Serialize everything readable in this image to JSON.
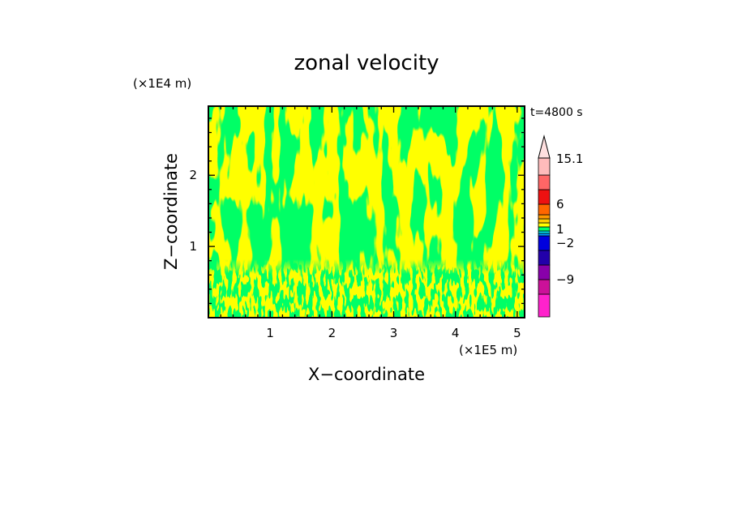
{
  "chart_data": {
    "type": "heatmap",
    "title": "zonal velocity",
    "xlabel": "X−coordinate",
    "ylabel": "Z−coordinate",
    "x_unit": "(×1E5 m)",
    "y_unit": "(×1E4 m)",
    "time_label": "t=4800 s",
    "xlim": [
      0,
      5.12
    ],
    "ylim": [
      0,
      2.97
    ],
    "x_ticks": [
      "1",
      "2",
      "3",
      "4",
      "5"
    ],
    "x_tick_values": [
      1,
      2,
      3,
      4,
      5
    ],
    "y_ticks": [
      "1",
      "2"
    ],
    "y_tick_values": [
      1,
      2
    ],
    "field_colors": {
      "positive": "#ffff00",
      "negative": "#00ff66"
    },
    "colorbar": {
      "labels": [
        "15.1",
        "6",
        "1",
        "−2",
        "−9"
      ],
      "label_values": [
        15.1,
        6,
        1,
        -2,
        -9
      ],
      "segments": [
        {
          "color": "#ff22cc"
        },
        {
          "color": "#cc1199"
        },
        {
          "color": "#8800aa"
        },
        {
          "color": "#2200aa"
        },
        {
          "color": "#0000dd"
        },
        {
          "color": "#0099ff"
        },
        {
          "color": "#00ddee"
        },
        {
          "color": "#00ff66"
        },
        {
          "color": "#ffff00"
        },
        {
          "color": "#ffcc00"
        },
        {
          "color": "#ff9900"
        },
        {
          "color": "#ff6600"
        },
        {
          "color": "#ee1111"
        },
        {
          "color": "#ff6666"
        },
        {
          "color": "#ffbbbb"
        }
      ],
      "tip_color": "#ffe0e0"
    }
  }
}
